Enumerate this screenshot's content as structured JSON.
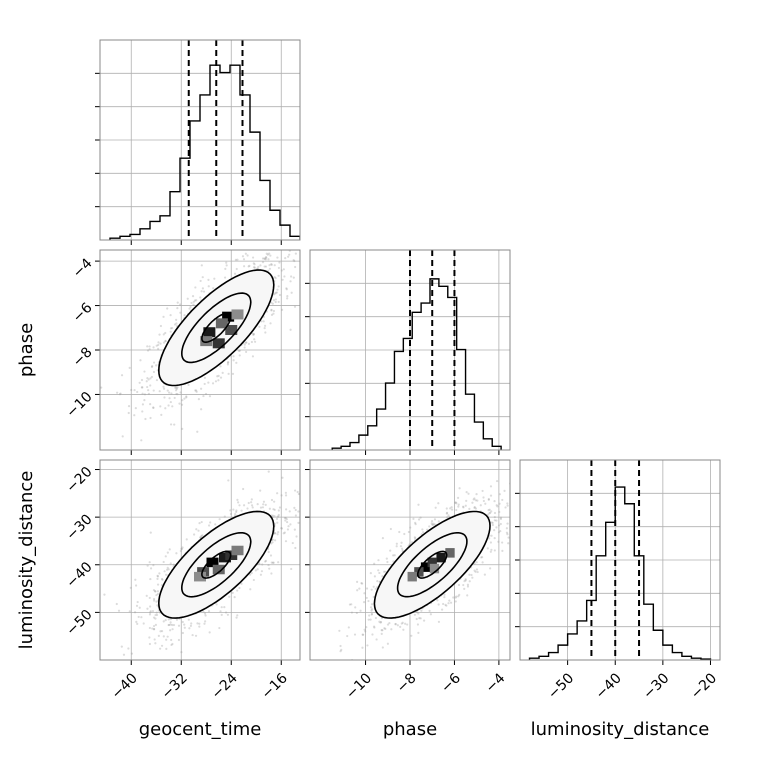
{
  "chart_data": {
    "type": "corner",
    "parameters": [
      "geocent_time",
      "phase",
      "luminosity_distance"
    ],
    "ranges": {
      "geocent_time": [
        -45,
        -13
      ],
      "phase": [
        -12.5,
        -3.5
      ],
      "luminosity_distance": [
        -60,
        -18
      ]
    },
    "ticks": {
      "geocent_time": [
        -40,
        -32,
        -24,
        -16
      ],
      "phase": [
        -10,
        -8,
        -6,
        -4
      ],
      "luminosity_distance": [
        -50,
        -40,
        -30,
        -20
      ]
    },
    "quantiles": {
      "geocent_time": [
        -30.8,
        -26.4,
        -22.2
      ],
      "phase": [
        -8.0,
        -7.0,
        -6.0
      ],
      "luminosity_distance": [
        -45.0,
        -40.0,
        -35.0
      ]
    },
    "histograms": {
      "geocent_time": {
        "edges": [
          -43.4,
          -41.8,
          -40.2,
          -38.6,
          -37.0,
          -35.4,
          -33.8,
          -32.2,
          -30.6,
          -29.0,
          -27.4,
          -25.8,
          -24.2,
          -22.6,
          -21.0,
          -19.4,
          -17.8,
          -16.2,
          -14.6,
          -13.0
        ],
        "counts": [
          0.01,
          0.02,
          0.03,
          0.06,
          0.1,
          0.13,
          0.26,
          0.44,
          0.64,
          0.78,
          0.94,
          0.9,
          0.94,
          0.78,
          0.58,
          0.32,
          0.16,
          0.08,
          0.02
        ]
      },
      "phase": {
        "edges": [
          -11.5,
          -11.1,
          -10.7,
          -10.3,
          -9.9,
          -9.5,
          -9.1,
          -8.7,
          -8.3,
          -7.9,
          -7.5,
          -7.1,
          -6.7,
          -6.3,
          -5.9,
          -5.5,
          -5.1,
          -4.7,
          -4.3,
          -3.9
        ],
        "counts": [
          0.01,
          0.02,
          0.04,
          0.08,
          0.13,
          0.22,
          0.36,
          0.53,
          0.6,
          0.74,
          0.79,
          0.92,
          0.88,
          0.82,
          0.54,
          0.3,
          0.15,
          0.06,
          0.02
        ]
      },
      "luminosity_distance": {
        "edges": [
          -58,
          -56,
          -54,
          -52,
          -50,
          -48,
          -46,
          -44,
          -42,
          -40,
          -38,
          -36,
          -34,
          -32,
          -30,
          -28,
          -26,
          -24,
          -22,
          -20
        ],
        "counts": [
          0.01,
          0.02,
          0.04,
          0.08,
          0.14,
          0.21,
          0.32,
          0.56,
          0.74,
          0.93,
          0.84,
          0.56,
          0.3,
          0.16,
          0.08,
          0.04,
          0.02,
          0.01,
          0.005
        ]
      }
    },
    "pairs": [
      {
        "x": "geocent_time",
        "y": "phase",
        "mean": [
          -26.4,
          -7.0
        ],
        "sd": [
          4.6,
          1.3
        ],
        "corr": 0.74,
        "cells": [
          [
            -24.5,
            -6.5
          ],
          [
            -27.5,
            -7.2
          ],
          [
            -26.0,
            -7.7
          ],
          [
            -24.0,
            -7.1
          ],
          [
            -25.5,
            -6.8
          ],
          [
            -28.0,
            -7.6
          ],
          [
            -23.0,
            -6.4
          ]
        ]
      },
      {
        "x": "geocent_time",
        "y": "luminosity_distance",
        "mean": [
          -26.4,
          -40.0
        ],
        "sd": [
          4.6,
          5.6
        ],
        "corr": 0.72,
        "cells": [
          [
            -27.0,
            -39.5
          ],
          [
            -25.0,
            -38.5
          ],
          [
            -24.0,
            -38.0
          ],
          [
            -28.5,
            -41.5
          ],
          [
            -26.0,
            -41.0
          ],
          [
            -23.0,
            -37.0
          ],
          [
            -29.0,
            -42.5
          ]
        ]
      },
      {
        "x": "phase",
        "y": "luminosity_distance",
        "mean": [
          -7.0,
          -40.0
        ],
        "sd": [
          1.3,
          5.6
        ],
        "corr": 0.73,
        "cells": [
          [
            -7.3,
            -40.5
          ],
          [
            -6.6,
            -38.5
          ],
          [
            -7.0,
            -39.5
          ],
          [
            -7.6,
            -41.5
          ],
          [
            -6.2,
            -37.5
          ],
          [
            -7.9,
            -42.5
          ],
          [
            -6.9,
            -40.8
          ]
        ]
      }
    ],
    "levels": [
      0.5,
      1.2,
      2.0
    ]
  }
}
